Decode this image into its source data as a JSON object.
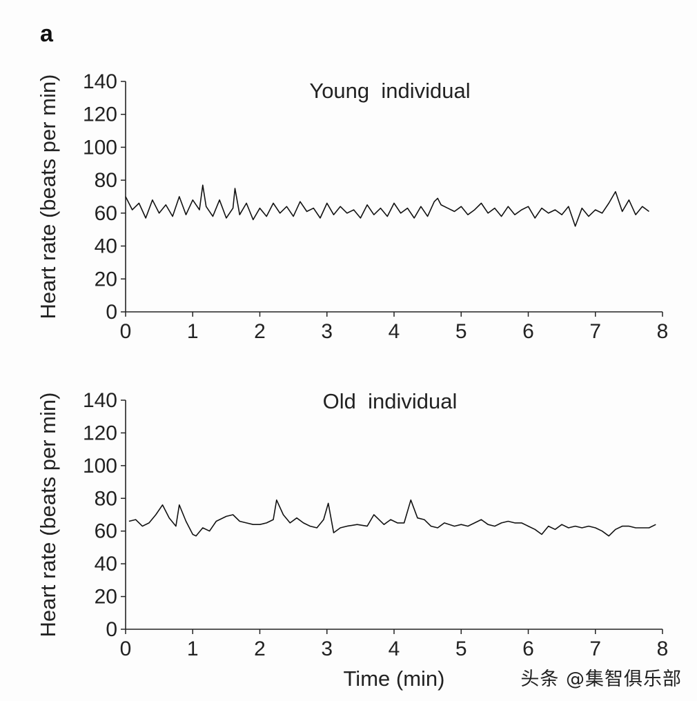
{
  "panel_label": "a",
  "watermark": "头条 @集智俱乐部",
  "chart_data": [
    {
      "type": "line",
      "title": "Young  individual",
      "xlabel": "",
      "ylabel": "Heart rate (beats per min)",
      "xlim": [
        0,
        8
      ],
      "ylim": [
        0,
        140
      ],
      "xticks": [
        "0",
        "1",
        "2",
        "3",
        "4",
        "5",
        "6",
        "7",
        "8"
      ],
      "yticks": [
        "0",
        "20",
        "40",
        "60",
        "80",
        "100",
        "120",
        "140"
      ],
      "grid": false,
      "series": [
        {
          "name": "Young individual",
          "x": [
            0,
            0.1,
            0.2,
            0.3,
            0.4,
            0.5,
            0.6,
            0.7,
            0.8,
            0.9,
            1.0,
            1.1,
            1.15,
            1.2,
            1.3,
            1.4,
            1.5,
            1.6,
            1.63,
            1.7,
            1.8,
            1.9,
            2.0,
            2.1,
            2.2,
            2.3,
            2.4,
            2.5,
            2.6,
            2.7,
            2.8,
            2.9,
            3.0,
            3.1,
            3.2,
            3.3,
            3.4,
            3.5,
            3.6,
            3.7,
            3.8,
            3.9,
            4.0,
            4.1,
            4.2,
            4.3,
            4.4,
            4.5,
            4.6,
            4.65,
            4.7,
            4.8,
            4.9,
            5.0,
            5.1,
            5.2,
            5.3,
            5.4,
            5.5,
            5.6,
            5.7,
            5.8,
            5.9,
            6.0,
            6.1,
            6.2,
            6.3,
            6.4,
            6.5,
            6.6,
            6.7,
            6.8,
            6.9,
            7.0,
            7.1,
            7.2,
            7.3,
            7.4,
            7.5,
            7.6,
            7.7,
            7.8
          ],
          "values": [
            70,
            62,
            66,
            57,
            68,
            60,
            65,
            58,
            70,
            59,
            68,
            62,
            77,
            64,
            58,
            68,
            57,
            63,
            75,
            59,
            66,
            56,
            63,
            58,
            66,
            60,
            64,
            58,
            67,
            61,
            63,
            57,
            66,
            59,
            64,
            60,
            62,
            57,
            65,
            59,
            63,
            58,
            66,
            60,
            63,
            57,
            64,
            58,
            67,
            69,
            65,
            63,
            61,
            64,
            59,
            62,
            66,
            60,
            63,
            58,
            64,
            59,
            62,
            64,
            57,
            63,
            60,
            62,
            59,
            64,
            52,
            63,
            58,
            62,
            60,
            66,
            73,
            61,
            68,
            59,
            64,
            61
          ]
        }
      ]
    },
    {
      "type": "line",
      "title": "Old  individual",
      "xlabel": "Time (min)",
      "ylabel": "Heart rate (beats per min)",
      "xlim": [
        0,
        8
      ],
      "ylim": [
        0,
        140
      ],
      "xticks": [
        "0",
        "1",
        "2",
        "3",
        "4",
        "5",
        "6",
        "7",
        "8"
      ],
      "yticks": [
        "0",
        "20",
        "40",
        "60",
        "80",
        "100",
        "120",
        "140"
      ],
      "grid": false,
      "series": [
        {
          "name": "Old individual",
          "x": [
            0.05,
            0.15,
            0.25,
            0.35,
            0.45,
            0.55,
            0.65,
            0.75,
            0.8,
            0.9,
            1.0,
            1.05,
            1.15,
            1.25,
            1.35,
            1.5,
            1.6,
            1.7,
            1.8,
            1.9,
            2.0,
            2.1,
            2.2,
            2.25,
            2.35,
            2.45,
            2.55,
            2.65,
            2.75,
            2.85,
            2.95,
            3.02,
            3.1,
            3.2,
            3.3,
            3.45,
            3.6,
            3.7,
            3.75,
            3.85,
            3.95,
            4.05,
            4.15,
            4.25,
            4.35,
            4.45,
            4.55,
            4.65,
            4.75,
            4.9,
            5.0,
            5.1,
            5.2,
            5.3,
            5.4,
            5.5,
            5.6,
            5.7,
            5.8,
            5.9,
            6.0,
            6.1,
            6.2,
            6.3,
            6.4,
            6.5,
            6.6,
            6.7,
            6.8,
            6.9,
            7.0,
            7.1,
            7.2,
            7.3,
            7.4,
            7.5,
            7.6,
            7.7,
            7.8,
            7.9
          ],
          "values": [
            66,
            67,
            63,
            65,
            70,
            76,
            68,
            63,
            76,
            66,
            58,
            57,
            62,
            60,
            66,
            69,
            70,
            66,
            65,
            64,
            64,
            65,
            67,
            79,
            70,
            65,
            68,
            65,
            63,
            62,
            67,
            77,
            59,
            62,
            63,
            64,
            63,
            70,
            68,
            64,
            67,
            65,
            65,
            79,
            68,
            67,
            63,
            62,
            65,
            63,
            64,
            63,
            65,
            67,
            64,
            63,
            65,
            66,
            65,
            65,
            63,
            61,
            58,
            63,
            61,
            64,
            62,
            63,
            62,
            63,
            62,
            60,
            57,
            61,
            63,
            63,
            62,
            62,
            62,
            64
          ]
        }
      ]
    }
  ]
}
